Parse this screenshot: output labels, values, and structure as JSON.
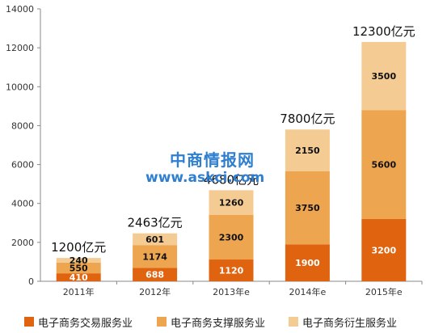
{
  "chart_data": {
    "type": "bar",
    "stacked": true,
    "categories": [
      "2011年",
      "2012年",
      "2013年e",
      "2014年e",
      "2015年e"
    ],
    "series": [
      {
        "name": "电子商务交易服务业",
        "color": "#e06410",
        "values": [
          410,
          688,
          1120,
          1900,
          3200
        ]
      },
      {
        "name": "电子商务支撑服务业",
        "color": "#eea54f",
        "values": [
          550,
          1174,
          2300,
          3750,
          5600
        ]
      },
      {
        "name": "电子商务衍生服务业",
        "color": "#f4cc93",
        "values": [
          240,
          601,
          1260,
          2150,
          3500
        ]
      }
    ],
    "totals": [
      1200,
      2463,
      4680,
      7800,
      12300
    ],
    "total_labels": [
      "1200亿元",
      "2463亿元",
      "4680亿元",
      "7800亿元",
      "12300亿元"
    ],
    "ylim": [
      0,
      14000
    ],
    "yticks": [
      0,
      2000,
      4000,
      6000,
      8000,
      10000,
      12000,
      14000
    ],
    "legend_position": "bottom",
    "grid": false
  },
  "watermark": {
    "name": "中商情报网",
    "url": "www.askci.com"
  }
}
